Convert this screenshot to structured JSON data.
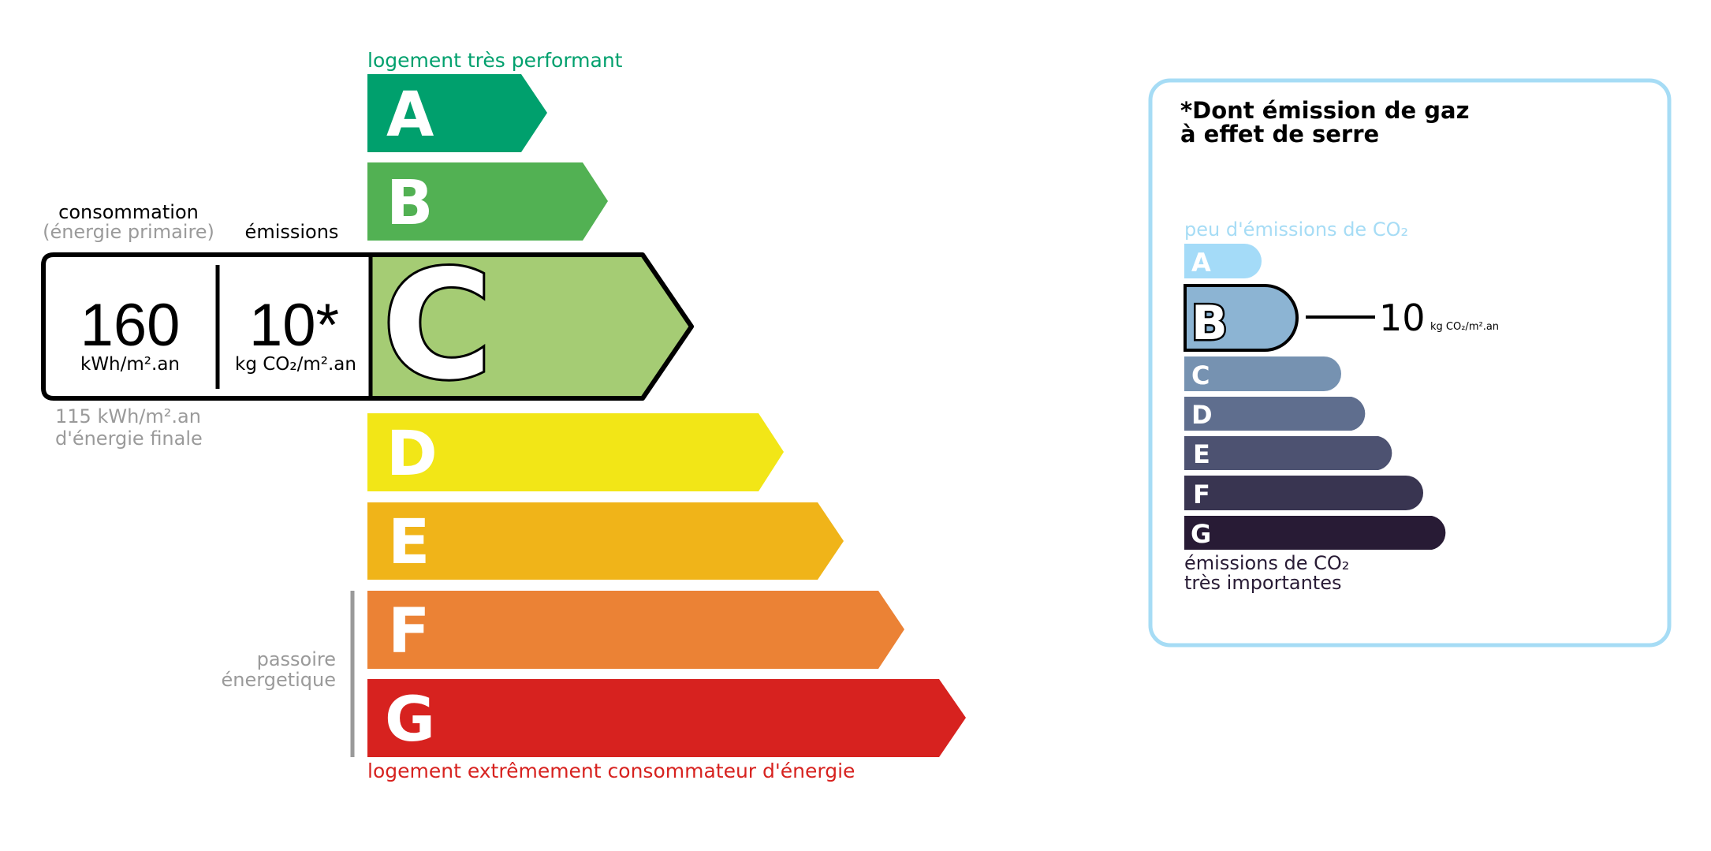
{
  "energy": {
    "top_label": "logement très performant",
    "bottom_label": "logement extrêmement consommateur d'énergie",
    "passoire_line1": "passoire",
    "passoire_line2": "énergetique",
    "classes": [
      "A",
      "B",
      "C",
      "D",
      "E",
      "F",
      "G"
    ],
    "colors": {
      "A": "#00a06d",
      "B": "#52b153",
      "C": "#a5cc74",
      "D": "#f2e617",
      "E": "#f0b419",
      "F": "#eb8235",
      "G": "#d7221f"
    },
    "current_class": "C",
    "consumption_label": "consommation",
    "consumption_sub": "(énergie primaire)",
    "emissions_label": "émissions",
    "consumption_value": "160",
    "consumption_unit": "kWh/m².an",
    "emissions_value": "10*",
    "emissions_unit": "kg CO₂/m².an",
    "final_energy_line1": "115 kWh/m².an",
    "final_energy_line2": "d'énergie finale"
  },
  "ghg": {
    "title_line1": "*Dont émission de gaz",
    "title_line2": "à effet de serre",
    "top_label": "peu d'émissions de CO₂",
    "bottom_line1": "émissions de CO₂",
    "bottom_line2": "très importantes",
    "classes": [
      "A",
      "B",
      "C",
      "D",
      "E",
      "F",
      "G"
    ],
    "colors": {
      "A": "#a4dbf8",
      "B": "#8cb4d3",
      "C": "#7692b1",
      "D": "#5f6e8e",
      "E": "#4d5271",
      "F": "#393551",
      "G": "#281b35"
    },
    "current_class": "B",
    "value": "10",
    "unit": "kg CO₂/m².an",
    "border_color": "#a6dcf5"
  }
}
